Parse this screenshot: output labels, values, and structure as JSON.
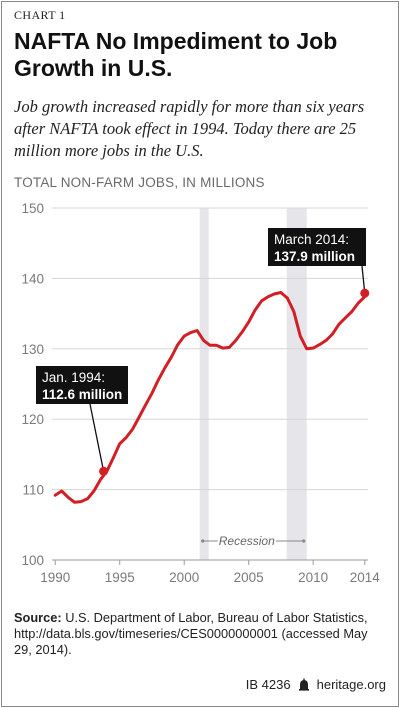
{
  "header": {
    "label": "CHART 1",
    "title": "NAFTA No Impediment to Job Growth in U.S.",
    "subtitle": "Job growth increased rapidly for more than six years after NAFTA took effect in 1994. Today there are 25 million more jobs in the U.S."
  },
  "footer": {
    "source_label": "Source:",
    "source_text": "U.S. Department of Labor, Bureau of Labor Statistics, http://data.bls.gov/timeseries/CES0000000001 (accessed May 29, 2014).",
    "id": "IB 4236",
    "site": "heritage.org"
  },
  "chart_data": {
    "type": "line",
    "title": "NAFTA No Impediment to Job Growth in U.S.",
    "ylabel": "TOTAL NON-FARM JOBS, IN MILLIONS",
    "xlabel": "",
    "xlim": [
      1989.75,
      2014.25
    ],
    "ylim": [
      100,
      150
    ],
    "xticks": [
      1990,
      1995,
      2000,
      2005,
      2010,
      2014
    ],
    "yticks": [
      100,
      110,
      120,
      130,
      140,
      150
    ],
    "grid": "horizontal",
    "line_color": "#d11f25",
    "recession_color": "#e6e6ea",
    "recessions": [
      {
        "start": 2001.2,
        "end": 2001.9
      },
      {
        "start": 2007.95,
        "end": 2009.5
      }
    ],
    "recession_label": "Recession",
    "series": [
      {
        "x": [
          1990.0,
          1990.5,
          1991.0,
          1991.5,
          1992.0,
          1992.5,
          1993.0,
          1993.5,
          1994.0,
          1994.5,
          1995.0,
          1995.5,
          1996.0,
          1996.5,
          1997.0,
          1997.5,
          1998.0,
          1998.5,
          1999.0,
          1999.5,
          2000.0,
          2000.5,
          2001.0,
          2001.5,
          2002.0,
          2002.5,
          2003.0,
          2003.5,
          2004.0,
          2004.5,
          2005.0,
          2005.5,
          2006.0,
          2006.5,
          2007.0,
          2007.5,
          2008.0,
          2008.5,
          2009.0,
          2009.5,
          2010.0,
          2010.5,
          2011.0,
          2011.5,
          2012.0,
          2012.5,
          2013.0,
          2013.5,
          2014.0,
          2014.2
        ],
        "y": [
          109.2,
          109.8,
          108.9,
          108.2,
          108.3,
          108.7,
          109.8,
          111.4,
          112.6,
          114.5,
          116.5,
          117.4,
          118.6,
          120.3,
          122.0,
          123.7,
          125.6,
          127.3,
          128.8,
          130.6,
          131.8,
          132.3,
          132.6,
          131.2,
          130.5,
          130.5,
          130.1,
          130.2,
          131.2,
          132.4,
          133.8,
          135.5,
          136.8,
          137.4,
          137.8,
          138.0,
          137.2,
          135.3,
          131.8,
          130.0,
          130.1,
          130.6,
          131.2,
          132.1,
          133.5,
          134.4,
          135.3,
          136.5,
          137.4,
          137.9
        ]
      }
    ],
    "annotations": [
      {
        "x": 1993.75,
        "y": 112.6,
        "line1": "Jan. 1994:",
        "line2": "112.6 million"
      },
      {
        "x": 2014.0,
        "y": 137.9,
        "line1": "March 2014:",
        "line2": "137.9 million"
      }
    ]
  }
}
